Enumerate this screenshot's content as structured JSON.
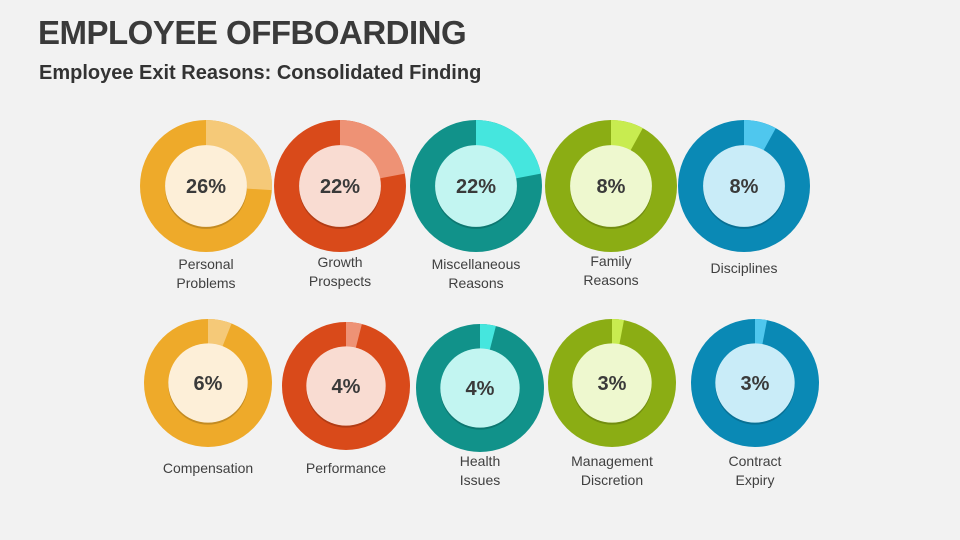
{
  "header": {
    "title": "EMPLOYEE OFFBOARDING",
    "subtitle": "Employee Exit Reasons: Consolidated Finding"
  },
  "chart_data": {
    "type": "pie",
    "variant": "donut",
    "items": [
      {
        "label": "Personal\nProblems",
        "value": 26,
        "display": "26%",
        "color": "#EEAA2A",
        "highlight": "#F5C978",
        "inner": "#FDEFD8"
      },
      {
        "label": "Growth\nProspects",
        "value": 22,
        "display": "22%",
        "color": "#D94A1A",
        "highlight": "#EE9275",
        "inner": "#F9DCD2"
      },
      {
        "label": "Miscellaneous\nReasons",
        "value": 22,
        "display": "22%",
        "color": "#11928A",
        "highlight": "#45E6DE",
        "inner": "#C2F5F1"
      },
      {
        "label": "Family\nReasons",
        "value": 8,
        "display": "8%",
        "color": "#8BAD14",
        "highlight": "#C8EC50",
        "inner": "#EEF8CF"
      },
      {
        "label": "Disciplines",
        "value": 8,
        "display": "8%",
        "color": "#0A89B5",
        "highlight": "#4FC7EE",
        "inner": "#C9ECF8"
      },
      {
        "label": "Compensation",
        "value": 6,
        "display": "6%",
        "color": "#EEAA2A",
        "highlight": "#F5C978",
        "inner": "#FDEFD8"
      },
      {
        "label": "Performance",
        "value": 4,
        "display": "4%",
        "color": "#D94A1A",
        "highlight": "#EE9275",
        "inner": "#F9DCD2"
      },
      {
        "label": "Health\nIssues",
        "value": 4,
        "display": "4%",
        "color": "#11928A",
        "highlight": "#45E6DE",
        "inner": "#C2F5F1"
      },
      {
        "label": "Management\nDiscretion",
        "value": 3,
        "display": "3%",
        "color": "#8BAD14",
        "highlight": "#C8EC50",
        "inner": "#EEF8CF"
      },
      {
        "label": "Contract\nExpiry",
        "value": 3,
        "display": "3%",
        "color": "#0A89B5",
        "highlight": "#4FC7EE",
        "inner": "#C9ECF8"
      }
    ]
  }
}
